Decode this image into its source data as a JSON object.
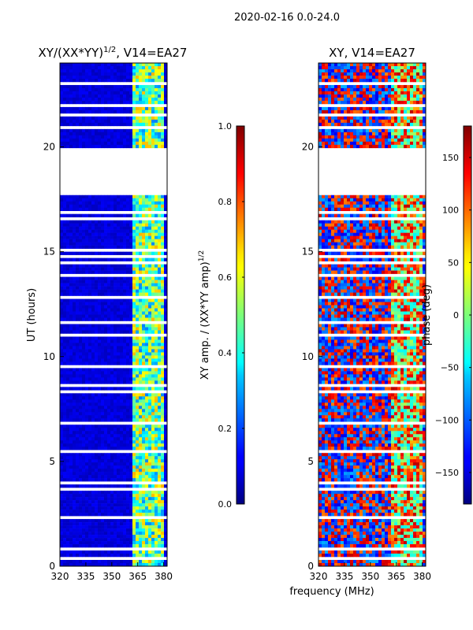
{
  "suptitle": "2020-02-16 0.0-24.0",
  "xlabel_shared": "frequency (MHz)",
  "chart_data": [
    {
      "type": "heatmap",
      "title": "XY/(XX*YY)",
      "title_sup": "1/2",
      "title_suffix": ", V14=EA27",
      "ylabel": "UT (hours)",
      "x_ticks": [
        "320",
        "335",
        "350",
        "365",
        "380"
      ],
      "x_tick_values": [
        320,
        335,
        350,
        365,
        380
      ],
      "y_ticks": [
        "0",
        "5",
        "10",
        "15",
        "20"
      ],
      "y_tick_values": [
        0,
        5,
        10,
        15,
        20
      ],
      "xlim": [
        320,
        382
      ],
      "ylim": [
        0,
        24
      ],
      "gap_hours": [
        17.7,
        20.0
      ],
      "colormap": "jet",
      "colorbar": {
        "label": "XY amp. / (XX*YY amp)",
        "label_sup": "1/2",
        "range": [
          0,
          1
        ],
        "ticks": [
          "0.0",
          "0.2",
          "0.4",
          "0.6",
          "0.8",
          "1.0"
        ],
        "tick_values": [
          0,
          0.2,
          0.4,
          0.6,
          0.8,
          1.0
        ]
      }
    },
    {
      "type": "heatmap",
      "title": "XY, V14=EA27",
      "ylabel": "phase (deg)",
      "x_ticks": [
        "320",
        "335",
        "350",
        "365",
        "380"
      ],
      "x_tick_values": [
        320,
        335,
        350,
        365,
        380
      ],
      "y_ticks": [
        "0",
        "5",
        "10",
        "15",
        "20"
      ],
      "y_tick_values": [
        0,
        5,
        10,
        15,
        20
      ],
      "xlim": [
        320,
        382
      ],
      "ylim": [
        0,
        24
      ],
      "gap_hours": [
        17.7,
        20.0
      ],
      "colormap": "jet",
      "colorbar": {
        "range": [
          -180,
          180
        ],
        "ticks": [
          "−150",
          "−100",
          "−50",
          "0",
          "50",
          "100",
          "150"
        ],
        "tick_values": [
          -150,
          -100,
          -50,
          0,
          50,
          100,
          150
        ]
      }
    }
  ]
}
